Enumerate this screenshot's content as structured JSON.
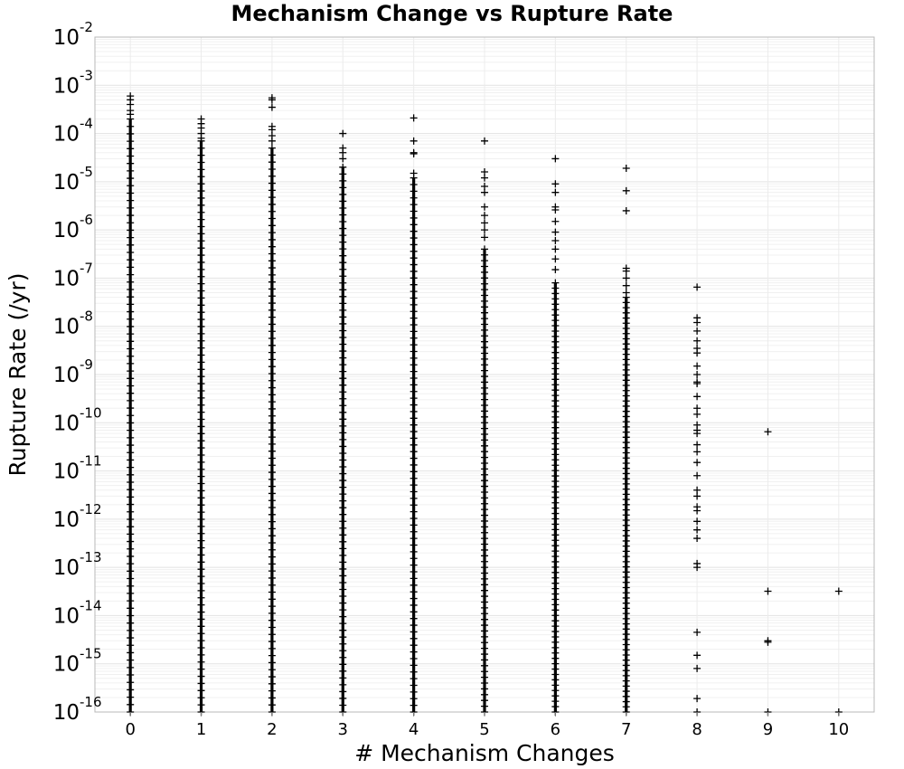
{
  "chart_data": {
    "type": "scatter",
    "title": "Mechanism Change vs Rupture Rate",
    "xlabel": "# Mechanism Changes",
    "ylabel": "Rupture Rate (/yr)",
    "x_ticks": [
      "0",
      "1",
      "2",
      "3",
      "4",
      "5",
      "6",
      "7",
      "8",
      "9",
      "10"
    ],
    "xlim": [
      -0.5,
      10.5
    ],
    "y_scale": "log",
    "ylim": [
      1e-16,
      0.01
    ],
    "y_ticks": [
      {
        "base": "10",
        "exp": "-2"
      },
      {
        "base": "10",
        "exp": "-3"
      },
      {
        "base": "10",
        "exp": "-4"
      },
      {
        "base": "10",
        "exp": "-5"
      },
      {
        "base": "10",
        "exp": "-6"
      },
      {
        "base": "10",
        "exp": "-7"
      },
      {
        "base": "10",
        "exp": "-8"
      },
      {
        "base": "10",
        "exp": "-9"
      },
      {
        "base": "10",
        "exp": "-10"
      },
      {
        "base": "10",
        "exp": "-11"
      },
      {
        "base": "10",
        "exp": "-12"
      },
      {
        "base": "10",
        "exp": "-13"
      },
      {
        "base": "10",
        "exp": "-14"
      },
      {
        "base": "10",
        "exp": "-15"
      },
      {
        "base": "10",
        "exp": "-16"
      }
    ],
    "grid": true,
    "marker": "plus",
    "marker_color": "#000000",
    "dense_ranges": [
      {
        "x": 0,
        "y_min": 1e-16,
        "y_max": 0.0002
      },
      {
        "x": 1,
        "y_min": 1e-16,
        "y_max": 7e-05
      },
      {
        "x": 2,
        "y_min": 1e-16,
        "y_max": 5e-05
      },
      {
        "x": 3,
        "y_min": 1e-16,
        "y_max": 2e-05
      },
      {
        "x": 4,
        "y_min": 1e-16,
        "y_max": 1.2e-05
      },
      {
        "x": 5,
        "y_min": 1e-16,
        "y_max": 4e-07
      },
      {
        "x": 6,
        "y_min": 1e-16,
        "y_max": 8e-08
      },
      {
        "x": 7,
        "y_min": 1e-16,
        "y_max": 4e-08
      }
    ],
    "points": [
      {
        "x": 0,
        "y": 0.0006
      },
      {
        "x": 0,
        "y": 0.0005
      },
      {
        "x": 0,
        "y": 0.0004
      },
      {
        "x": 0,
        "y": 0.0003
      },
      {
        "x": 0,
        "y": 0.00025
      },
      {
        "x": 1,
        "y": 0.0002
      },
      {
        "x": 1,
        "y": 0.00016
      },
      {
        "x": 1,
        "y": 0.00013
      },
      {
        "x": 1,
        "y": 0.0001
      },
      {
        "x": 1,
        "y": 8e-05
      },
      {
        "x": 2,
        "y": 0.00055
      },
      {
        "x": 2,
        "y": 0.0005
      },
      {
        "x": 2,
        "y": 0.00035
      },
      {
        "x": 2,
        "y": 0.00014
      },
      {
        "x": 2,
        "y": 0.00012
      },
      {
        "x": 2,
        "y": 9e-05
      },
      {
        "x": 2,
        "y": 7e-05
      },
      {
        "x": 3,
        "y": 0.0001
      },
      {
        "x": 3,
        "y": 5e-05
      },
      {
        "x": 3,
        "y": 4e-05
      },
      {
        "x": 3,
        "y": 3e-05
      },
      {
        "x": 4,
        "y": 0.00021
      },
      {
        "x": 4,
        "y": 7e-05
      },
      {
        "x": 4,
        "y": 4e-05
      },
      {
        "x": 4,
        "y": 3.8e-05
      },
      {
        "x": 4,
        "y": 1.5e-05
      },
      {
        "x": 5,
        "y": 7e-05
      },
      {
        "x": 5,
        "y": 1.6e-05
      },
      {
        "x": 5,
        "y": 1.2e-05
      },
      {
        "x": 5,
        "y": 8e-06
      },
      {
        "x": 5,
        "y": 6e-06
      },
      {
        "x": 5,
        "y": 3e-06
      },
      {
        "x": 5,
        "y": 2e-06
      },
      {
        "x": 5,
        "y": 1.4e-06
      },
      {
        "x": 5,
        "y": 1e-06
      },
      {
        "x": 5,
        "y": 7e-07
      },
      {
        "x": 6,
        "y": 3e-05
      },
      {
        "x": 6,
        "y": 9e-06
      },
      {
        "x": 6,
        "y": 6e-06
      },
      {
        "x": 6,
        "y": 3e-06
      },
      {
        "x": 6,
        "y": 2.6e-06
      },
      {
        "x": 6,
        "y": 1.5e-06
      },
      {
        "x": 6,
        "y": 9e-07
      },
      {
        "x": 6,
        "y": 6e-07
      },
      {
        "x": 6,
        "y": 4e-07
      },
      {
        "x": 6,
        "y": 2.5e-07
      },
      {
        "x": 6,
        "y": 1.5e-07
      },
      {
        "x": 7,
        "y": 1.9e-05
      },
      {
        "x": 7,
        "y": 6.5e-06
      },
      {
        "x": 7,
        "y": 2.5e-06
      },
      {
        "x": 7,
        "y": 1.6e-07
      },
      {
        "x": 7,
        "y": 1.4e-07
      },
      {
        "x": 7,
        "y": 1e-07
      },
      {
        "x": 7,
        "y": 7e-08
      },
      {
        "x": 7,
        "y": 5e-08
      },
      {
        "x": 8,
        "y": 6.5e-08
      },
      {
        "x": 8,
        "y": 1.5e-08
      },
      {
        "x": 8,
        "y": 1.2e-08
      },
      {
        "x": 8,
        "y": 8e-09
      },
      {
        "x": 8,
        "y": 5e-09
      },
      {
        "x": 8,
        "y": 3.5e-09
      },
      {
        "x": 8,
        "y": 2.8e-09
      },
      {
        "x": 8,
        "y": 1.5e-09
      },
      {
        "x": 8,
        "y": 1e-09
      },
      {
        "x": 8,
        "y": 7e-10
      },
      {
        "x": 8,
        "y": 6.5e-10
      },
      {
        "x": 8,
        "y": 3.5e-10
      },
      {
        "x": 8,
        "y": 2e-10
      },
      {
        "x": 8,
        "y": 1.5e-10
      },
      {
        "x": 8,
        "y": 9e-11
      },
      {
        "x": 8,
        "y": 7e-11
      },
      {
        "x": 8,
        "y": 6e-11
      },
      {
        "x": 8,
        "y": 3.5e-11
      },
      {
        "x": 8,
        "y": 2.5e-11
      },
      {
        "x": 8,
        "y": 1.5e-11
      },
      {
        "x": 8,
        "y": 8e-12
      },
      {
        "x": 8,
        "y": 4e-12
      },
      {
        "x": 8,
        "y": 3e-12
      },
      {
        "x": 8,
        "y": 1.8e-12
      },
      {
        "x": 8,
        "y": 1.5e-12
      },
      {
        "x": 8,
        "y": 9e-13
      },
      {
        "x": 8,
        "y": 6e-13
      },
      {
        "x": 8,
        "y": 4e-13
      },
      {
        "x": 8,
        "y": 1.2e-13
      },
      {
        "x": 8,
        "y": 1e-13
      },
      {
        "x": 8,
        "y": 4.5e-15
      },
      {
        "x": 8,
        "y": 1.5e-15
      },
      {
        "x": 8,
        "y": 8e-16
      },
      {
        "x": 8,
        "y": 1.9e-16
      },
      {
        "x": 8,
        "y": 1e-16
      },
      {
        "x": 9,
        "y": 6.5e-11
      },
      {
        "x": 9,
        "y": 3.2e-14
      },
      {
        "x": 9,
        "y": 3e-15
      },
      {
        "x": 9,
        "y": 2.8e-15
      },
      {
        "x": 9,
        "y": 1e-16
      },
      {
        "x": 10,
        "y": 3.2e-14
      },
      {
        "x": 10,
        "y": 1e-16
      }
    ]
  }
}
